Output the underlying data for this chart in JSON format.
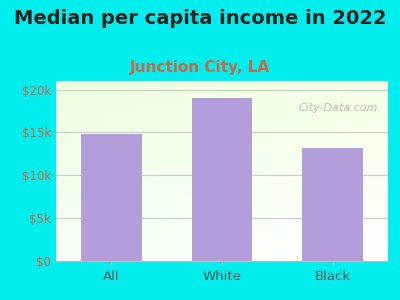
{
  "title": "Median per capita income in 2022",
  "subtitle": "Junction City, LA",
  "categories": [
    "All",
    "White",
    "Black"
  ],
  "values": [
    14800,
    19000,
    13200
  ],
  "bar_color": "#b39ddb",
  "title_fontsize": 14,
  "subtitle_fontsize": 11,
  "subtitle_color": "#cc6644",
  "title_color": "#222222",
  "background_color": "#00eeee",
  "ytick_label_color": "#cc6644",
  "xtick_label_color": "#555555",
  "ylim": [
    0,
    21000
  ],
  "yticks": [
    0,
    5000,
    10000,
    15000,
    20000
  ],
  "ytick_labels": [
    "$0",
    "$5k",
    "$10k",
    "$15k",
    "$20k"
  ],
  "watermark": "City-Data.com",
  "grid_color": "#cccccc"
}
